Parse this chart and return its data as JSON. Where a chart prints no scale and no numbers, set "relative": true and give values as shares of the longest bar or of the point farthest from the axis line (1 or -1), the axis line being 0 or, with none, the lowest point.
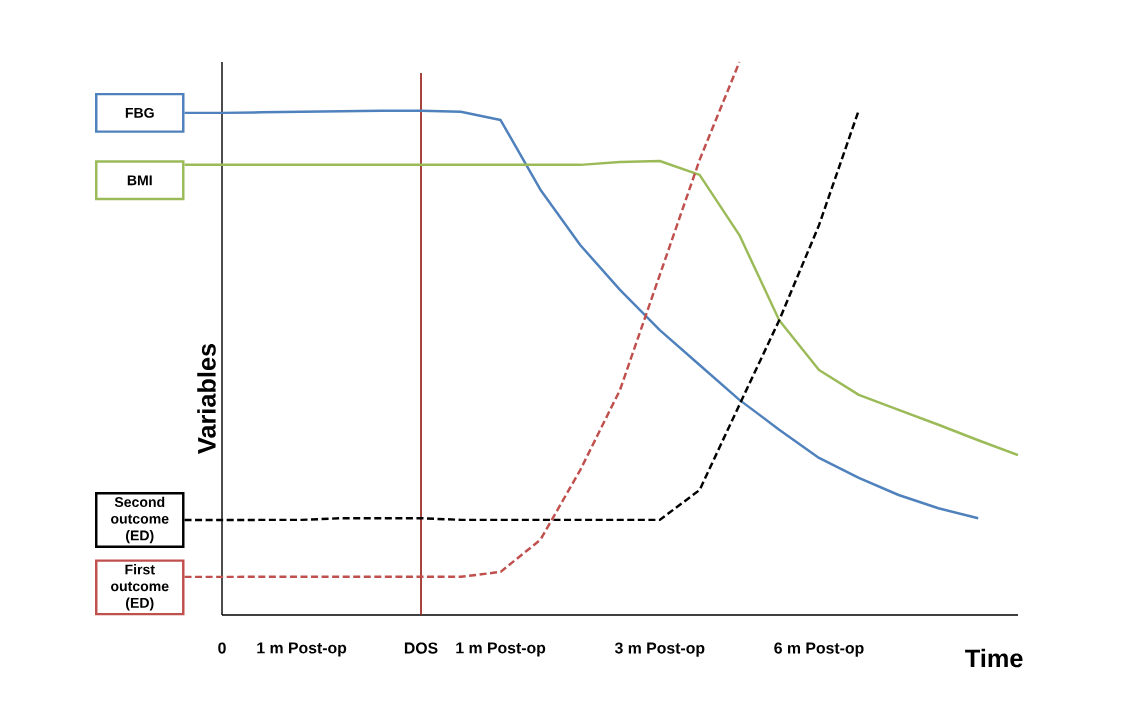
{
  "chart_data": {
    "type": "line",
    "relative": true,
    "xlabel": "Time",
    "ylabel": "Variables",
    "categories": [
      "0",
      null,
      "1 m Post-op",
      null,
      null,
      "DOS",
      null,
      "1 m Post-op",
      null,
      null,
      null,
      "3 m Post-op",
      null,
      null,
      null,
      "6 m Post-op",
      null,
      null,
      null,
      null,
      null
    ],
    "tick_labels": "x",
    "marker": "none",
    "legend": "left",
    "ref_lines": [
      {
        "axis": "x",
        "value": "DOS",
        "color": "#9c2a24"
      }
    ],
    "series": [
      {
        "name": "FBG",
        "color": "#4f81bd",
        "line_style": "solid",
        "values": [
          0.908,
          0.909,
          0.91,
          0.911,
          0.912,
          0.912,
          0.91,
          0.895,
          0.769,
          0.669,
          0.588,
          0.515,
          0.452,
          0.389,
          0.335,
          0.284,
          0.248,
          0.217,
          0.193,
          0.175,
          null
        ]
      },
      {
        "name": "BMI",
        "color": "#9bbb59",
        "line_style": "solid",
        "values": [
          0.8141,
          0.814,
          0.814,
          0.814,
          0.814,
          0.814,
          0.814,
          0.814,
          0.814,
          0.814,
          0.819,
          0.821,
          0.796,
          0.687,
          0.533,
          0.443,
          0.398,
          0.371,
          0.344,
          0.316,
          0.289
        ]
      },
      {
        "name": "Second outcome (ED)",
        "color": "#000000",
        "line_style": "dashed",
        "values": [
          0.1719,
          0.172,
          0.172,
          0.175,
          0.175,
          0.175,
          0.172,
          0.172,
          0.172,
          0.172,
          0.172,
          0.172,
          0.226,
          0.38,
          0.533,
          0.705,
          0.913,
          null,
          null,
          null,
          null
        ]
      },
      {
        "name": "First outcome (ED)",
        "color": "#c0504d",
        "line_style": "dashed",
        "values": [
          0.06894,
          0.069,
          0.069,
          0.069,
          0.069,
          0.069,
          0.069,
          0.078,
          0.136,
          0.262,
          0.407,
          0.615,
          0.823,
          1.0,
          null,
          null,
          null,
          null,
          null,
          null,
          null
        ]
      }
    ]
  }
}
